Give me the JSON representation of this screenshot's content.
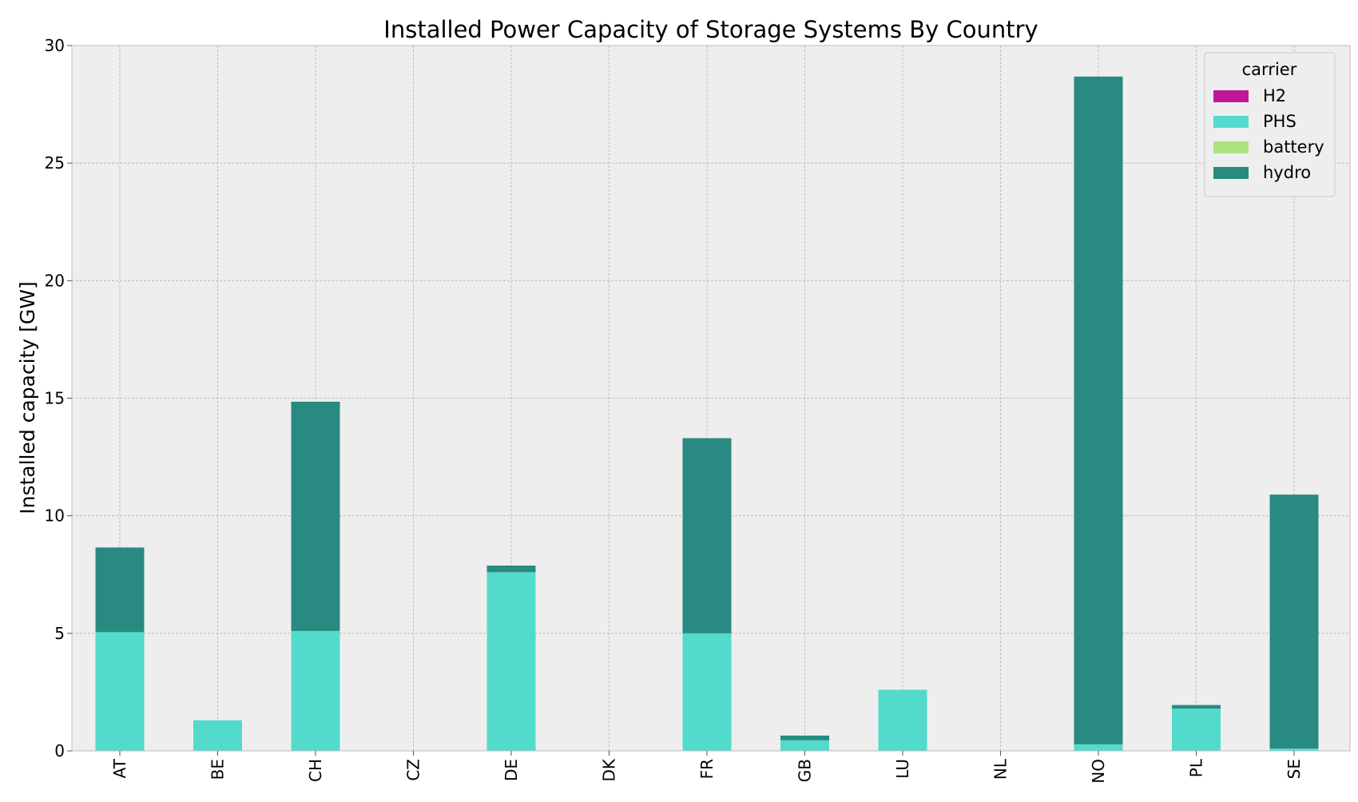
{
  "chart_data": {
    "type": "bar",
    "stacked": true,
    "title": "Installed Power Capacity of Storage Systems By Country",
    "xlabel": "",
    "ylabel": "Installed capacity [GW]",
    "ylim": [
      0,
      30
    ],
    "yticks": [
      0,
      5,
      10,
      15,
      20,
      25,
      30
    ],
    "grid": true,
    "legend": {
      "title": "carrier",
      "placement": "top-right"
    },
    "categories": [
      "AT",
      "BE",
      "CH",
      "CZ",
      "DE",
      "DK",
      "FR",
      "GB",
      "LU",
      "NL",
      "NO",
      "PL",
      "SE"
    ],
    "series": [
      {
        "name": "H2",
        "color": "#c01899",
        "values": [
          0,
          0,
          0,
          0,
          0,
          0,
          0,
          0,
          0,
          0,
          0,
          0,
          0
        ]
      },
      {
        "name": "PHS",
        "color": "#52dbcb",
        "values": [
          5.05,
          1.3,
          5.1,
          0,
          7.6,
          0,
          5.0,
          0.45,
          2.6,
          0,
          0.28,
          1.8,
          0.1
        ]
      },
      {
        "name": "battery",
        "color": "#ace37f",
        "values": [
          0,
          0,
          0,
          0,
          0,
          0,
          0,
          0,
          0,
          0,
          0,
          0,
          0
        ]
      },
      {
        "name": "hydro",
        "color": "#288a80",
        "values": [
          3.6,
          0,
          9.75,
          0,
          0.28,
          0,
          8.3,
          0.2,
          0,
          0,
          28.4,
          0.15,
          10.8
        ]
      }
    ]
  }
}
